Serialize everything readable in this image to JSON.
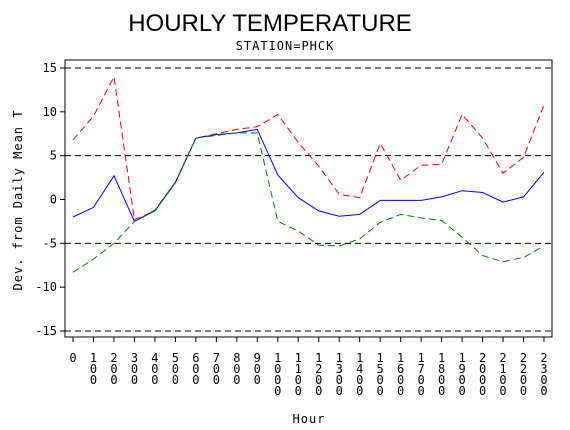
{
  "chart_data": {
    "type": "line",
    "title": "HOURLY TEMPERATURE",
    "subtitle": "STATION=PHCK",
    "xlabel": "Hour",
    "ylabel": "Dev. from Daily Mean T",
    "ylim": [
      -15,
      15
    ],
    "yticks": [
      "-15",
      "-10",
      "-5",
      "0",
      "5",
      "10",
      "15"
    ],
    "x": [
      "0",
      "100",
      "200",
      "300",
      "400",
      "500",
      "600",
      "700",
      "800",
      "900",
      "1000",
      "1100",
      "1200",
      "1300",
      "1400",
      "1500",
      "1600",
      "1700",
      "1800",
      "1900",
      "2000",
      "2100",
      "2200",
      "2300"
    ],
    "reference_lines": [
      -15,
      -5,
      5,
      15
    ],
    "grid": false,
    "series": [
      {
        "color": "#ff0000",
        "style": "dashed",
        "values": [
          6.8,
          9.5,
          14.0,
          -2.3,
          -1.3,
          2.0,
          7.0,
          7.5,
          8.0,
          8.3,
          9.7,
          6.5,
          3.8,
          0.6,
          0.2,
          6.4,
          2.2,
          3.9,
          4.0,
          9.7,
          7.0,
          3.0,
          4.8,
          10.8
        ]
      },
      {
        "color": "#0000ff",
        "style": "solid",
        "values": [
          -2.0,
          -0.9,
          2.7,
          -2.5,
          -1.3,
          1.9,
          7.0,
          7.4,
          7.6,
          8.0,
          2.8,
          0.2,
          -1.3,
          -1.9,
          -1.7,
          -0.1,
          -0.1,
          -0.1,
          0.3,
          1.0,
          0.8,
          -0.3,
          0.3,
          3.1
        ]
      },
      {
        "color": "#008000",
        "style": "dashed",
        "values": [
          -8.3,
          -6.8,
          -5.0,
          -2.5,
          -1.2,
          2.0,
          7.0,
          7.3,
          7.6,
          7.6,
          -2.5,
          -3.6,
          -5.2,
          -5.3,
          -4.5,
          -2.6,
          -1.7,
          -2.1,
          -2.4,
          -4.3,
          -6.4,
          -7.1,
          -6.6,
          -5.3
        ]
      }
    ]
  }
}
